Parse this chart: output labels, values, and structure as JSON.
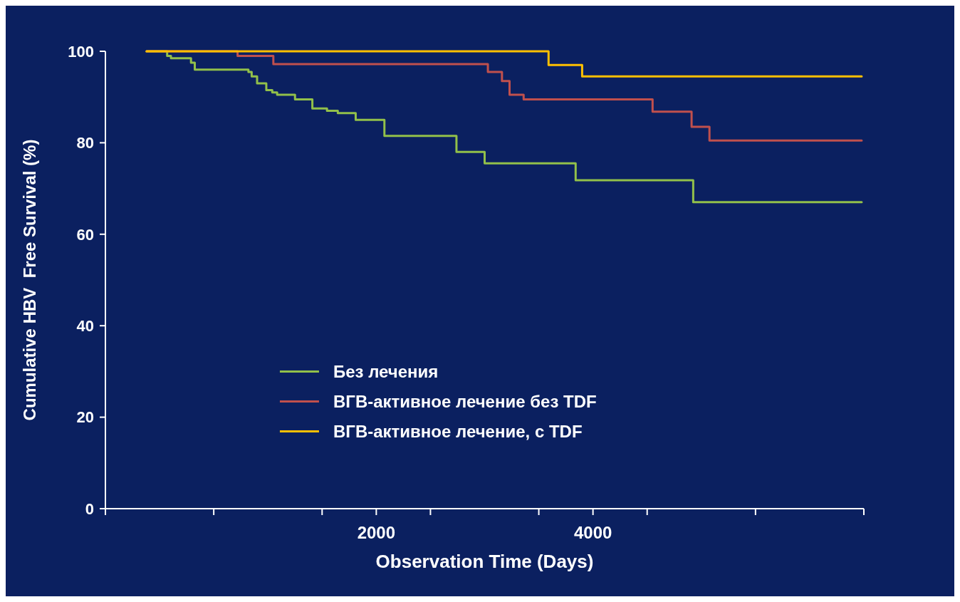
{
  "chart_data": {
    "type": "line",
    "xlabel": "Observation Time (Days)",
    "ylabel": "Cumulative HBV  Free Survival (%)",
    "xlim": [
      -500,
      6500
    ],
    "xticks": [
      {
        "value": -500,
        "label": null
      },
      {
        "value": 500,
        "label": null
      },
      {
        "value": 1500,
        "label": null
      },
      2000,
      {
        "value": 2500,
        "label": null
      },
      {
        "value": 3500,
        "label": null
      },
      4000,
      {
        "value": 4500,
        "label": null
      },
      {
        "value": 5500,
        "label": null
      },
      {
        "value": 6500,
        "label": null
      }
    ],
    "ylim": [
      0,
      100
    ],
    "yticks": [
      0,
      20,
      40,
      60,
      80,
      100
    ],
    "grid": false,
    "legend": "bottom",
    "marker": "none",
    "line_style": "solid",
    "series": [
      {
        "name": "Без лечения",
        "color": "#92c04a",
        "x": [
          -120,
          70,
          70,
          105,
          105,
          290,
          290,
          325,
          325,
          820,
          820,
          850,
          850,
          900,
          900,
          985,
          985,
          1040,
          1040,
          1085,
          1085,
          1250,
          1250,
          1410,
          1410,
          1545,
          1545,
          1645,
          1645,
          1810,
          1810,
          2075,
          2075,
          2740,
          2740,
          3000,
          3000,
          3840,
          3840,
          4925,
          4925,
          6480
        ],
        "values": [
          100,
          100,
          99,
          99,
          98.5,
          98.5,
          97.5,
          97.5,
          96,
          96,
          95.5,
          95.5,
          94.5,
          94.5,
          93,
          93,
          91.5,
          91.5,
          91,
          91,
          90.5,
          90.5,
          89.5,
          89.5,
          87.5,
          87.5,
          87,
          87,
          86.5,
          86.5,
          85,
          85,
          81.5,
          81.5,
          78,
          78,
          75.5,
          75.5,
          71.8,
          71.8,
          67,
          67
        ]
      },
      {
        "name": "ВГВ-активное лечение без TDF",
        "color": "#c0504d",
        "x": [
          -120,
          720,
          720,
          1050,
          1050,
          3030,
          3030,
          3160,
          3160,
          3230,
          3230,
          3360,
          3360,
          4550,
          4550,
          4910,
          4910,
          5075,
          5075,
          6480
        ],
        "values": [
          100,
          100,
          99,
          99,
          97.2,
          97.2,
          95.5,
          95.5,
          93.5,
          93.5,
          90.5,
          90.5,
          89.5,
          89.5,
          86.8,
          86.8,
          83.5,
          83.5,
          80.5,
          80.5
        ]
      },
      {
        "name": "ВГВ-активное лечение, с TDF",
        "color": "#ffc000",
        "x": [
          -120,
          3590,
          3590,
          3900,
          3900,
          6480
        ],
        "values": [
          100,
          100,
          97,
          97,
          94.5,
          94.5
        ]
      }
    ]
  }
}
